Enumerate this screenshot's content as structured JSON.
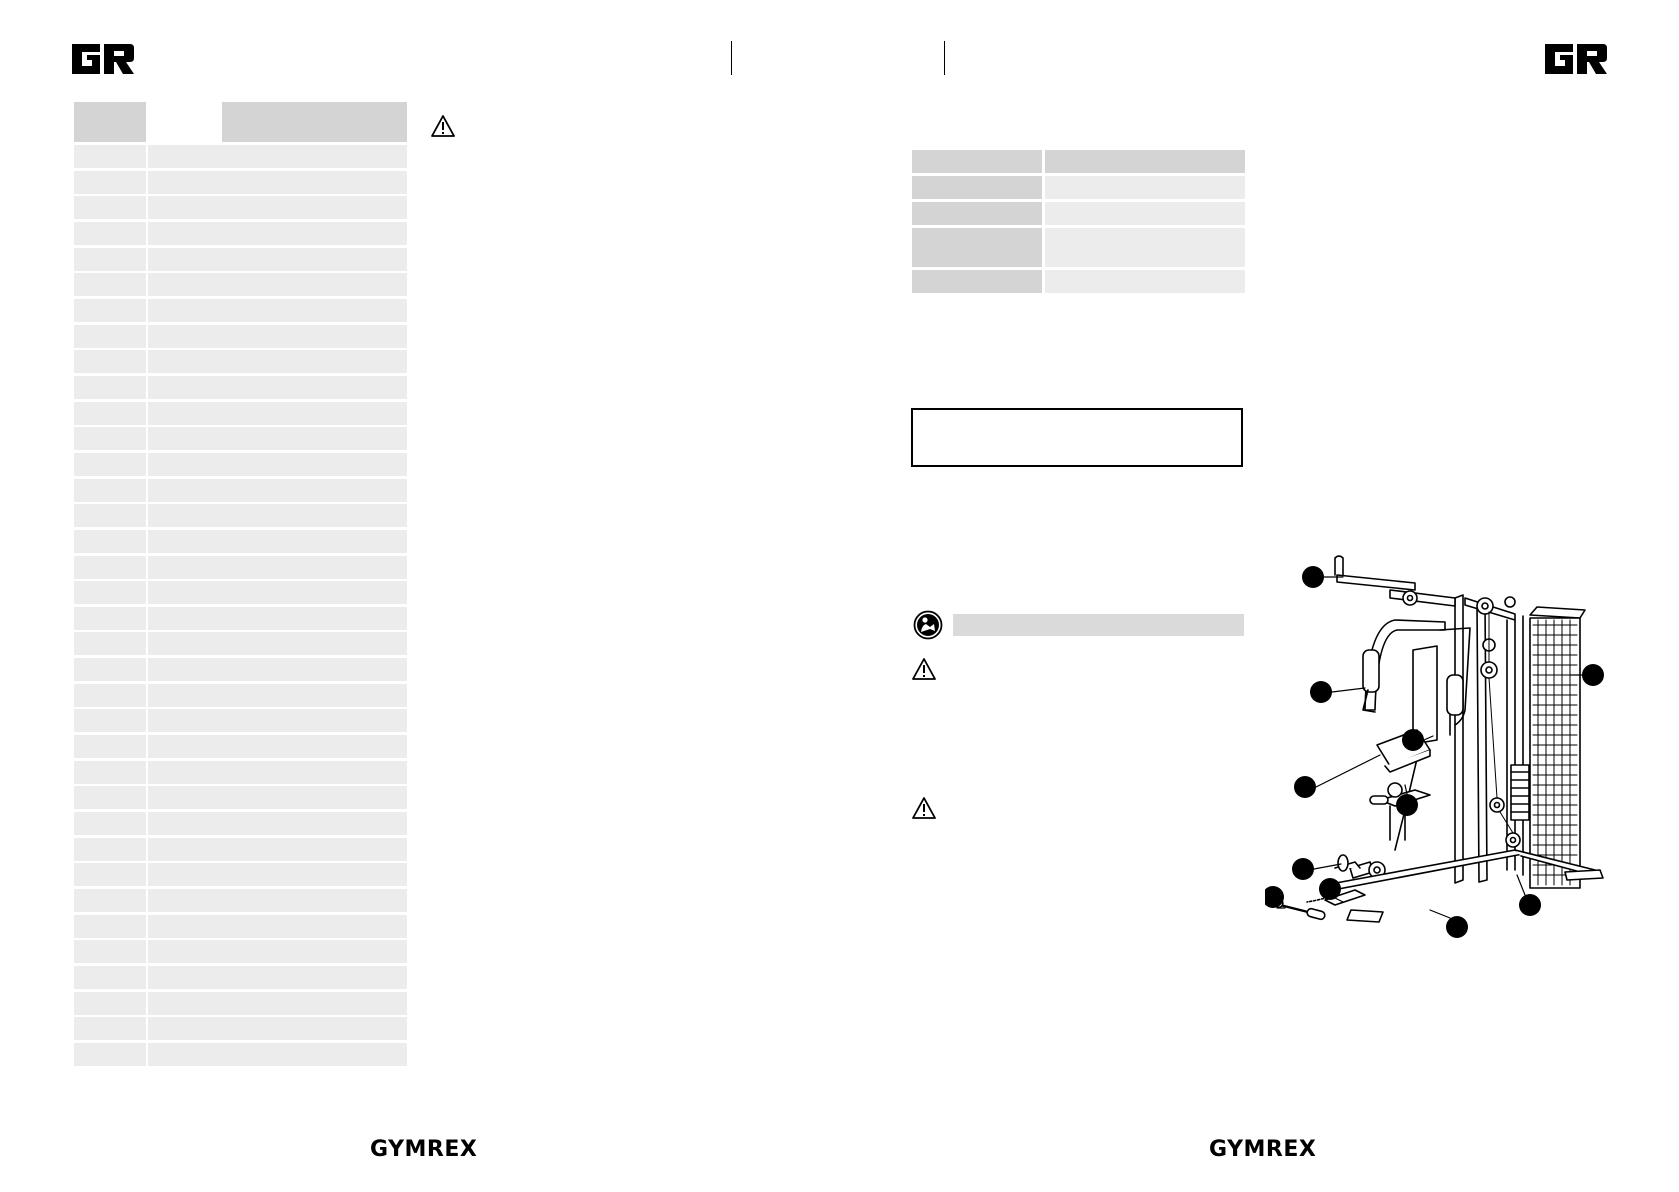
{
  "left_page": {
    "parts_table": {
      "header": {
        "number": "",
        "description": ""
      },
      "rows": [
        {
          "number": "",
          "description": ""
        },
        {
          "number": "",
          "description": ""
        },
        {
          "number": "",
          "description": ""
        },
        {
          "number": "",
          "description": ""
        },
        {
          "number": "",
          "description": ""
        },
        {
          "number": "",
          "description": ""
        },
        {
          "number": "",
          "description": ""
        },
        {
          "number": "",
          "description": ""
        },
        {
          "number": "",
          "description": ""
        },
        {
          "number": "",
          "description": ""
        },
        {
          "number": "",
          "description": ""
        },
        {
          "number": "",
          "description": ""
        },
        {
          "number": "",
          "description": ""
        },
        {
          "number": "",
          "description": ""
        },
        {
          "number": "",
          "description": ""
        },
        {
          "number": "",
          "description": ""
        },
        {
          "number": "",
          "description": ""
        },
        {
          "number": "",
          "description": ""
        },
        {
          "number": "",
          "description": ""
        },
        {
          "number": "",
          "description": ""
        },
        {
          "number": "",
          "description": ""
        },
        {
          "number": "",
          "description": ""
        },
        {
          "number": "",
          "description": ""
        },
        {
          "number": "",
          "description": ""
        },
        {
          "number": "",
          "description": ""
        },
        {
          "number": "",
          "description": ""
        },
        {
          "number": "",
          "description": ""
        },
        {
          "number": "",
          "description": ""
        },
        {
          "number": "",
          "description": ""
        },
        {
          "number": "",
          "description": ""
        },
        {
          "number": "",
          "description": ""
        },
        {
          "number": "",
          "description": ""
        },
        {
          "number": "",
          "description": ""
        },
        {
          "number": "",
          "description": ""
        },
        {
          "number": "",
          "description": ""
        },
        {
          "number": "",
          "description": ""
        }
      ]
    },
    "footer_brand": "GYMREX"
  },
  "right_page": {
    "spec_table": {
      "rows": [
        {
          "label": "",
          "value": ""
        },
        {
          "label": "",
          "value": ""
        },
        {
          "label": "",
          "value": ""
        },
        {
          "label": "",
          "value": ""
        },
        {
          "label": "",
          "value": ""
        }
      ]
    },
    "section_title": "",
    "footer_brand": "GYMREX"
  },
  "icons": {
    "header_logo": "gr-logo-icon",
    "warning": "warning-triangle-icon",
    "read_manual": "read-manual-icon"
  },
  "colors": {
    "table_header": "#d4d4d4",
    "table_cell": "#ececec"
  }
}
